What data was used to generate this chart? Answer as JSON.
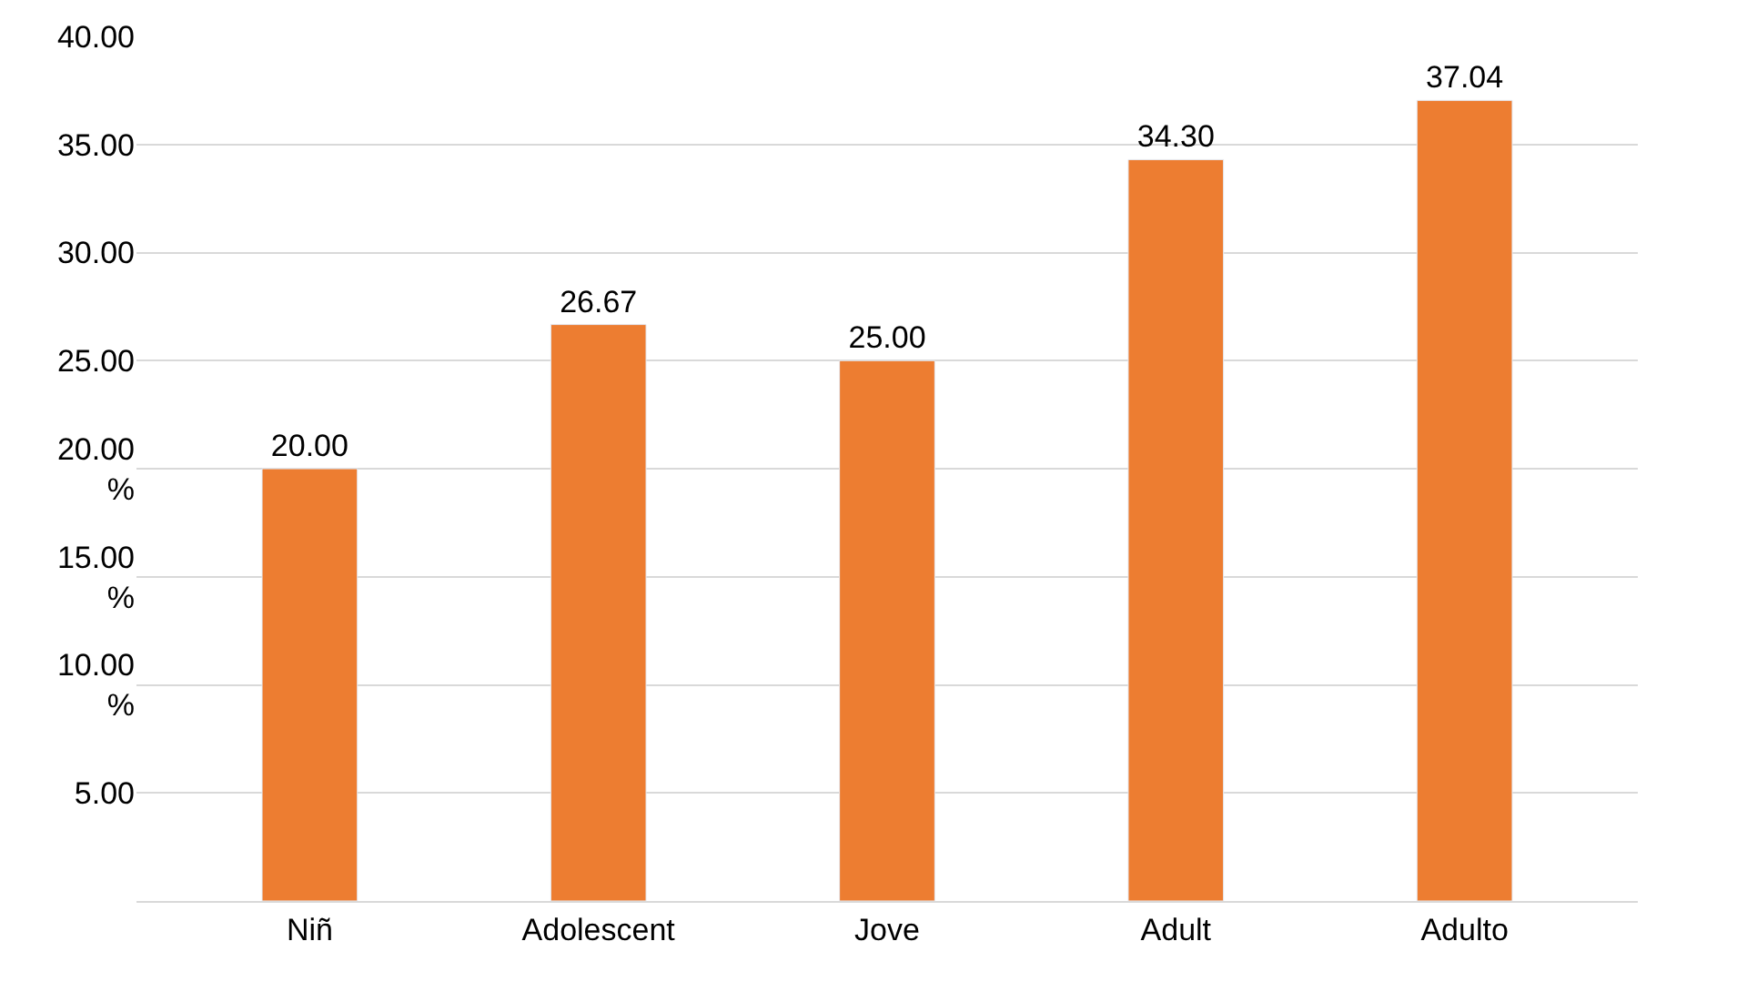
{
  "chart_data": {
    "type": "bar",
    "categories": [
      "Niñ",
      "Adolescent",
      "Jove",
      "Adult",
      "Adulto"
    ],
    "values": [
      20.0,
      26.67,
      25.0,
      34.3,
      37.04
    ],
    "value_labels": [
      "20.00",
      "26.67",
      "25.00",
      "34.30",
      "37.04"
    ],
    "color": "#ed7d31",
    "ylim": [
      0,
      40
    ],
    "yticks": [
      {
        "value": 5,
        "label": "5.00"
      },
      {
        "value": 10,
        "label": "10.00\n%"
      },
      {
        "value": 15,
        "label": "15.00\n%"
      },
      {
        "value": 20,
        "label": "20.00\n%"
      },
      {
        "value": 25,
        "label": "25.00"
      },
      {
        "value": 30,
        "label": "30.00"
      },
      {
        "value": 35,
        "label": "35.00"
      },
      {
        "value": 40,
        "label": "40.00"
      }
    ],
    "grid": "y",
    "legend": false
  }
}
